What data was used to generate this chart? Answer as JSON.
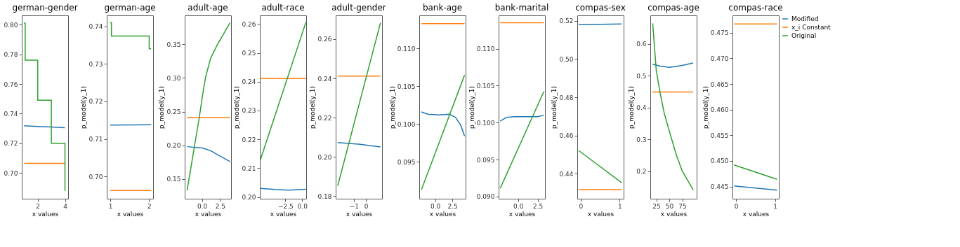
{
  "chart_data": [
    {
      "type": "line",
      "title": "german-gender",
      "xlabel": "x values",
      "xlim": [
        0.83,
        4.23
      ],
      "ylim": [
        0.6827,
        0.8062
      ],
      "xticks": [
        2,
        4
      ],
      "yticks": [
        {
          "value": 0.7,
          "label": "0.70"
        },
        0.72,
        0.74,
        0.76,
        0.78,
        {
          "value": 0.8,
          "label": "0.80"
        }
      ],
      "series": [
        {
          "color": "#1f77b4",
          "x": [
            1.0,
            2.0,
            3.0,
            4.0
          ],
          "values": [
            0.7318,
            0.7314,
            0.731,
            0.7306
          ]
        },
        {
          "color": "#ff7f0e",
          "x": [
            1.0,
            4.0
          ],
          "values": [
            0.7065,
            0.7065
          ]
        },
        {
          "color": "#2ca02c",
          "x": [
            1.0,
            1.08,
            1.08,
            2.0,
            2.0,
            3.0,
            3.0,
            4.0,
            4.0
          ],
          "values": [
            0.801,
            0.801,
            0.776,
            0.776,
            0.749,
            0.749,
            0.72,
            0.72,
            0.688
          ]
        }
      ]
    },
    {
      "type": "line",
      "title": "german-age",
      "xlabel": "x values",
      "ylabel": "p_model(y_1)",
      "xlim": [
        0.91,
        2.1
      ],
      "ylim": [
        0.6941,
        0.7429
      ],
      "xticks": [
        1,
        2
      ],
      "yticks": [
        {
          "value": 0.7,
          "label": "0.70"
        },
        0.71,
        0.72,
        0.73,
        0.74
      ],
      "series": [
        {
          "color": "#1f77b4",
          "x": [
            1.0,
            2.05
          ],
          "values": [
            0.7137,
            0.7138
          ]
        },
        {
          "color": "#ff7f0e",
          "x": [
            1.0,
            2.05
          ],
          "values": [
            0.6963,
            0.6963
          ]
        },
        {
          "color": "#2ca02c",
          "x": [
            1.0,
            1.03,
            1.03,
            2.0,
            2.0,
            2.05
          ],
          "values": [
            0.741,
            0.741,
            0.7374,
            0.7374,
            0.734,
            0.734
          ]
        }
      ]
    },
    {
      "type": "line",
      "title": "adult-age",
      "xlabel": "x values",
      "ylabel": "p_model(y_1)",
      "xlim": [
        -2.39,
        4.01
      ],
      "ylim": [
        0.1207,
        0.393
      ],
      "xticks": [
        {
          "value": 0,
          "label": "0.0"
        },
        2.5
      ],
      "yticks": [
        0.15,
        {
          "value": 0.2,
          "label": "0.20"
        },
        0.25,
        {
          "value": 0.3,
          "label": "0.30"
        },
        0.35
      ],
      "series": [
        {
          "color": "#1f77b4",
          "x": [
            -2.06,
            0.08,
            1.2,
            2.14,
            3.87
          ],
          "values": [
            0.198,
            0.196,
            0.192,
            0.186,
            0.176
          ]
        },
        {
          "color": "#ff7f0e",
          "x": [
            -2.06,
            3.87
          ],
          "values": [
            0.241,
            0.241
          ]
        },
        {
          "color": "#2ca02c",
          "x": [
            -2.06,
            -0.38,
            0.08,
            0.49,
            1.18,
            2.14,
            3.87
          ],
          "values": [
            0.133,
            0.241,
            0.275,
            0.301,
            0.329,
            0.35,
            0.382
          ]
        }
      ]
    },
    {
      "type": "line",
      "title": "adult-race",
      "xlabel": "x values",
      "ylabel": "p_model(y_1)",
      "xlim": [
        -6.3,
        0.6
      ],
      "ylim": [
        0.1994,
        0.263
      ],
      "xticks": [
        {
          "value": -2.5,
          "label": "−2.5"
        },
        {
          "value": 0,
          "label": "0.0"
        }
      ],
      "yticks": [
        {
          "value": 0.2,
          "label": "0.20"
        },
        0.21,
        0.22,
        0.23,
        0.24,
        0.25,
        0.26
      ],
      "series": [
        {
          "color": "#1f77b4",
          "x": [
            -6.25,
            -4.0,
            -2.0,
            0.55
          ],
          "values": [
            0.203,
            0.2026,
            0.2024,
            0.2027
          ]
        },
        {
          "color": "#ff7f0e",
          "x": [
            -6.25,
            0.55
          ],
          "values": [
            0.2411,
            0.2411
          ]
        },
        {
          "color": "#2ca02c",
          "x": [
            -6.25,
            0.55
          ],
          "values": [
            0.2127,
            0.2606
          ]
        }
      ]
    },
    {
      "type": "line",
      "title": "adult-gender",
      "xlabel": "x values",
      "ylabel": "p_model(y_1)",
      "xlim": [
        -2.5,
        1.33
      ],
      "ylim": [
        0.1787,
        0.2721
      ],
      "xticks": [
        {
          "value": -1,
          "label": "−1"
        },
        0
      ],
      "yticks": [
        0.18,
        {
          "value": 0.2,
          "label": "0.20"
        },
        0.22,
        0.24,
        0.26
      ],
      "series": [
        {
          "color": "#1f77b4",
          "x": [
            -2.33,
            -0.6,
            1.2
          ],
          "values": [
            0.2073,
            0.2065,
            0.2051
          ]
        },
        {
          "color": "#ff7f0e",
          "x": [
            -2.33,
            1.2
          ],
          "values": [
            0.2412,
            0.2412
          ]
        },
        {
          "color": "#2ca02c",
          "x": [
            -2.33,
            1.2
          ],
          "values": [
            0.1853,
            0.2683
          ]
        }
      ]
    },
    {
      "type": "line",
      "title": "bank-age",
      "xlabel": "x values",
      "ylabel": "p_model(y_1)",
      "xlim": [
        -2.29,
        4.41
      ],
      "ylim": [
        0.0901,
        0.1144
      ],
      "xticks": [
        {
          "value": 0,
          "label": "0.0"
        },
        2.5
      ],
      "yticks": [
        0.095,
        {
          "value": 0.1,
          "label": "0.100"
        },
        0.105,
        {
          "value": 0.11,
          "label": "0.110"
        }
      ],
      "series": [
        {
          "color": "#1f77b4",
          "x": [
            -1.97,
            -1.03,
            0.59,
            2.06,
            2.94,
            3.68,
            4.26
          ],
          "values": [
            0.1016,
            0.1013,
            0.1012,
            0.1013,
            0.1009,
            0.0999,
            0.0984
          ]
        },
        {
          "color": "#ff7f0e",
          "x": [
            -1.97,
            4.26
          ],
          "values": [
            0.1133,
            0.1133
          ]
        },
        {
          "color": "#2ca02c",
          "x": [
            -1.97,
            4.26
          ],
          "values": [
            0.0913,
            0.1065
          ]
        }
      ]
    },
    {
      "type": "line",
      "title": "bank-marital",
      "xlabel": "x values",
      "ylabel": "p_model(y_1)",
      "xlim": [
        -2.49,
        3.43
      ],
      "ylim": [
        0.0897,
        0.1145
      ],
      "xticks": [
        {
          "value": 0,
          "label": "0.0"
        },
        2.5
      ],
      "yticks": [
        {
          "value": 0.09,
          "label": "0.090"
        },
        0.095,
        {
          "value": 0.1,
          "label": "0.100"
        },
        0.105,
        {
          "value": 0.11,
          "label": "0.110"
        }
      ],
      "series": [
        {
          "color": "#1f77b4",
          "x": [
            -2.29,
            -1.5,
            -0.5,
            2.5,
            3.29
          ],
          "values": [
            0.1002,
            0.1007,
            0.1008,
            0.1008,
            0.101
          ]
        },
        {
          "color": "#ff7f0e",
          "x": [
            -2.29,
            3.29
          ],
          "values": [
            0.1135,
            0.1135
          ]
        },
        {
          "color": "#2ca02c",
          "x": [
            -2.29,
            3.29
          ],
          "values": [
            0.0911,
            0.1042
          ]
        }
      ]
    },
    {
      "type": "line",
      "title": "compas-sex",
      "xlabel": "x values",
      "ylabel": "p_model(y_1)",
      "xlim": [
        -0.088,
        1.1
      ],
      "ylim": [
        0.4269,
        0.5229
      ],
      "xticks": [
        0,
        1
      ],
      "yticks": [
        0.44,
        0.46,
        0.48,
        {
          "value": 0.5,
          "label": "0.50"
        },
        0.52
      ],
      "series": [
        {
          "color": "#1f77b4",
          "x": [
            -0.05,
            1.05
          ],
          "values": [
            0.518,
            0.5184
          ]
        },
        {
          "color": "#ff7f0e",
          "x": [
            -0.05,
            1.05
          ],
          "values": [
            0.4317,
            0.4317
          ]
        },
        {
          "color": "#2ca02c",
          "x": [
            -0.05,
            1.05
          ],
          "values": [
            0.4521,
            0.4353
          ]
        }
      ]
    },
    {
      "type": "line",
      "title": "compas-age",
      "xlabel": "x values",
      "ylabel": "p_model(y_1)",
      "xlim": [
        13.5,
        102.7
      ],
      "ylim": [
        0.1142,
        0.689
      ],
      "xticks": [
        25,
        50,
        75
      ],
      "yticks": [
        0.2,
        0.3,
        0.4,
        0.5,
        0.6
      ],
      "series": [
        {
          "color": "#1f77b4",
          "x": [
            18.1,
            32.7,
            50.8,
            75,
            96
          ],
          "values": [
            0.536,
            0.53,
            0.526,
            0.532,
            0.54
          ]
        },
        {
          "color": "#ff7f0e",
          "x": [
            18.1,
            96
          ],
          "values": [
            0.449,
            0.449
          ]
        },
        {
          "color": "#2ca02c",
          "x": [
            18.1,
            25,
            32.7,
            40.4,
            50.8,
            63.5,
            75,
            96
          ],
          "values": [
            0.664,
            0.516,
            0.443,
            0.382,
            0.322,
            0.252,
            0.201,
            0.142
          ]
        }
      ]
    },
    {
      "type": "line",
      "title": "compas-race",
      "xlabel": "x values",
      "ylabel": "p_model(y_1)",
      "xlim": [
        -0.09,
        1.096
      ],
      "ylim": [
        0.44262,
        0.47838
      ],
      "xticks": [
        0,
        1
      ],
      "yticks": [
        0.445,
        {
          "value": 0.45,
          "label": "0.450"
        },
        0.455,
        {
          "value": 0.46,
          "label": "0.460"
        },
        0.465,
        {
          "value": 0.47,
          "label": "0.470"
        },
        0.475
      ],
      "legend": "right",
      "series": [
        {
          "name": "Modified",
          "color": "#1f77b4",
          "x": [
            -0.05,
            1.05
          ],
          "values": [
            0.4451,
            0.4443
          ]
        },
        {
          "name": "x_i Constant",
          "color": "#ff7f0e",
          "x": [
            -0.05,
            1.05
          ],
          "values": [
            0.4767,
            0.4767
          ]
        },
        {
          "name": "Original",
          "color": "#2ca02c",
          "x": [
            -0.05,
            1.05
          ],
          "values": [
            0.4492,
            0.4464
          ]
        }
      ]
    }
  ]
}
